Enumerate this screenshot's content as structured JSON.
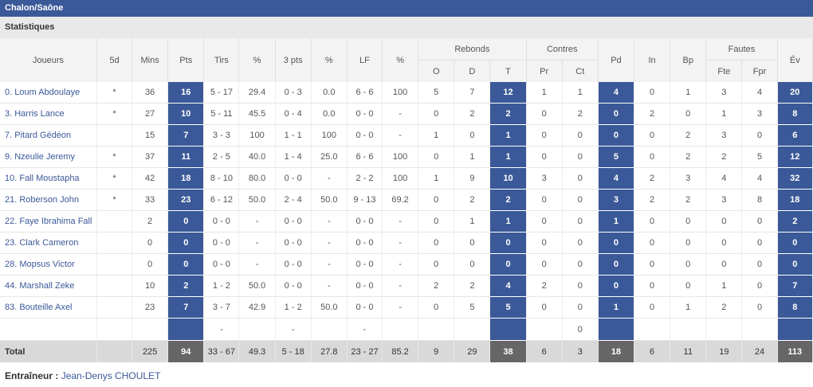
{
  "team": {
    "name": "Chalon/Saône"
  },
  "section": {
    "title": "Statistiques"
  },
  "headers": {
    "joueurs": "Joueurs",
    "5d": "5d",
    "mins": "Mins",
    "pts": "Pts",
    "tirs": "Tirs",
    "pct1": "%",
    "3pts": "3 pts",
    "pct2": "%",
    "lf": "LF",
    "pct3": "%",
    "rebonds": "Rebonds",
    "reb_o": "O",
    "reb_d": "D",
    "reb_t": "T",
    "contres": "Contres",
    "contres_pr": "Pr",
    "contres_ct": "Ct",
    "pd": "Pd",
    "in": "In",
    "bp": "Bp",
    "fautes": "Fautes",
    "fautes_fte": "Fte",
    "fautes_fpr": "Fpr",
    "ev": "Év"
  },
  "players": [
    {
      "name": "0. Loum Abdoulaye",
      "starter": "*",
      "mins": "36",
      "pts": "16",
      "tirs": "5 - 17",
      "tirs_pct": "29.4",
      "pts3": "0 - 3",
      "pts3_pct": "0.0",
      "lf": "6 - 6",
      "lf_pct": "100",
      "reb_o": "5",
      "reb_d": "7",
      "reb_t": "12",
      "pr": "1",
      "ct": "1",
      "pd": "4",
      "in": "0",
      "bp": "1",
      "fte": "3",
      "fpr": "4",
      "ev": "20"
    },
    {
      "name": "3. Harris Lance",
      "starter": "*",
      "mins": "27",
      "pts": "10",
      "tirs": "5 - 11",
      "tirs_pct": "45.5",
      "pts3": "0 - 4",
      "pts3_pct": "0.0",
      "lf": "0 - 0",
      "lf_pct": "-",
      "reb_o": "0",
      "reb_d": "2",
      "reb_t": "2",
      "pr": "0",
      "ct": "2",
      "pd": "0",
      "in": "2",
      "bp": "0",
      "fte": "1",
      "fpr": "3",
      "ev": "8"
    },
    {
      "name": "7. Pitard Gédéon",
      "starter": "",
      "mins": "15",
      "pts": "7",
      "tirs": "3 - 3",
      "tirs_pct": "100",
      "pts3": "1 - 1",
      "pts3_pct": "100",
      "lf": "0 - 0",
      "lf_pct": "-",
      "reb_o": "1",
      "reb_d": "0",
      "reb_t": "1",
      "pr": "0",
      "ct": "0",
      "pd": "0",
      "in": "0",
      "bp": "2",
      "fte": "3",
      "fpr": "0",
      "ev": "6"
    },
    {
      "name": "9. Nzeulie Jeremy",
      "starter": "*",
      "mins": "37",
      "pts": "11",
      "tirs": "2 - 5",
      "tirs_pct": "40.0",
      "pts3": "1 - 4",
      "pts3_pct": "25.0",
      "lf": "6 - 6",
      "lf_pct": "100",
      "reb_o": "0",
      "reb_d": "1",
      "reb_t": "1",
      "pr": "0",
      "ct": "0",
      "pd": "5",
      "in": "0",
      "bp": "2",
      "fte": "2",
      "fpr": "5",
      "ev": "12"
    },
    {
      "name": "10. Fall Moustapha",
      "starter": "*",
      "mins": "42",
      "pts": "18",
      "tirs": "8 - 10",
      "tirs_pct": "80.0",
      "pts3": "0 - 0",
      "pts3_pct": "-",
      "lf": "2 - 2",
      "lf_pct": "100",
      "reb_o": "1",
      "reb_d": "9",
      "reb_t": "10",
      "pr": "3",
      "ct": "0",
      "pd": "4",
      "in": "2",
      "bp": "3",
      "fte": "4",
      "fpr": "4",
      "ev": "32"
    },
    {
      "name": "21. Roberson John",
      "starter": "*",
      "mins": "33",
      "pts": "23",
      "tirs": "6 - 12",
      "tirs_pct": "50.0",
      "pts3": "2 - 4",
      "pts3_pct": "50.0",
      "lf": "9 - 13",
      "lf_pct": "69.2",
      "reb_o": "0",
      "reb_d": "2",
      "reb_t": "2",
      "pr": "0",
      "ct": "0",
      "pd": "3",
      "in": "2",
      "bp": "2",
      "fte": "3",
      "fpr": "8",
      "ev": "18"
    },
    {
      "name": "22. Faye Ibrahima Fall",
      "starter": "",
      "mins": "2",
      "pts": "0",
      "tirs": "0 - 0",
      "tirs_pct": "-",
      "pts3": "0 - 0",
      "pts3_pct": "-",
      "lf": "0 - 0",
      "lf_pct": "-",
      "reb_o": "0",
      "reb_d": "1",
      "reb_t": "1",
      "pr": "0",
      "ct": "0",
      "pd": "1",
      "in": "0",
      "bp": "0",
      "fte": "0",
      "fpr": "0",
      "ev": "2"
    },
    {
      "name": "23. Clark Cameron",
      "starter": "",
      "mins": "0",
      "pts": "0",
      "tirs": "0 - 0",
      "tirs_pct": "-",
      "pts3": "0 - 0",
      "pts3_pct": "-",
      "lf": "0 - 0",
      "lf_pct": "-",
      "reb_o": "0",
      "reb_d": "0",
      "reb_t": "0",
      "pr": "0",
      "ct": "0",
      "pd": "0",
      "in": "0",
      "bp": "0",
      "fte": "0",
      "fpr": "0",
      "ev": "0"
    },
    {
      "name": "28. Mopsus Victor",
      "starter": "",
      "mins": "0",
      "pts": "0",
      "tirs": "0 - 0",
      "tirs_pct": "-",
      "pts3": "0 - 0",
      "pts3_pct": "-",
      "lf": "0 - 0",
      "lf_pct": "-",
      "reb_o": "0",
      "reb_d": "0",
      "reb_t": "0",
      "pr": "0",
      "ct": "0",
      "pd": "0",
      "in": "0",
      "bp": "0",
      "fte": "0",
      "fpr": "0",
      "ev": "0"
    },
    {
      "name": "44. Marshall Zeke",
      "starter": "",
      "mins": "10",
      "pts": "2",
      "tirs": "1 - 2",
      "tirs_pct": "50.0",
      "pts3": "0 - 0",
      "pts3_pct": "-",
      "lf": "0 - 0",
      "lf_pct": "-",
      "reb_o": "2",
      "reb_d": "2",
      "reb_t": "4",
      "pr": "2",
      "ct": "0",
      "pd": "0",
      "in": "0",
      "bp": "0",
      "fte": "1",
      "fpr": "0",
      "ev": "7"
    },
    {
      "name": "83. Bouteille Axel",
      "starter": "",
      "mins": "23",
      "pts": "7",
      "tirs": "3 - 7",
      "tirs_pct": "42.9",
      "pts3": "1 - 2",
      "pts3_pct": "50.0",
      "lf": "0 - 0",
      "lf_pct": "-",
      "reb_o": "0",
      "reb_d": "5",
      "reb_t": "5",
      "pr": "0",
      "ct": "0",
      "pd": "1",
      "in": "0",
      "bp": "1",
      "fte": "2",
      "fpr": "0",
      "ev": "8"
    }
  ],
  "team_row": {
    "tirs": "-",
    "pts3": "-",
    "lf": "-",
    "ct": "0"
  },
  "totals": {
    "label": "Total",
    "mins": "225",
    "pts": "94",
    "tirs": "33 - 67",
    "tirs_pct": "49.3",
    "pts3": "5 - 18",
    "pts3_pct": "27.8",
    "lf": "23 - 27",
    "lf_pct": "85.2",
    "reb_o": "9",
    "reb_d": "29",
    "reb_t": "38",
    "pr": "6",
    "ct": "3",
    "pd": "18",
    "in": "6",
    "bp": "11",
    "fte": "19",
    "fpr": "24",
    "ev": "113"
  },
  "coach": {
    "label": "Entraîneur :",
    "name": "Jean-Denys CHOULET"
  },
  "colors": {
    "accent": "#3b5998",
    "total_highlight": "#666666"
  }
}
